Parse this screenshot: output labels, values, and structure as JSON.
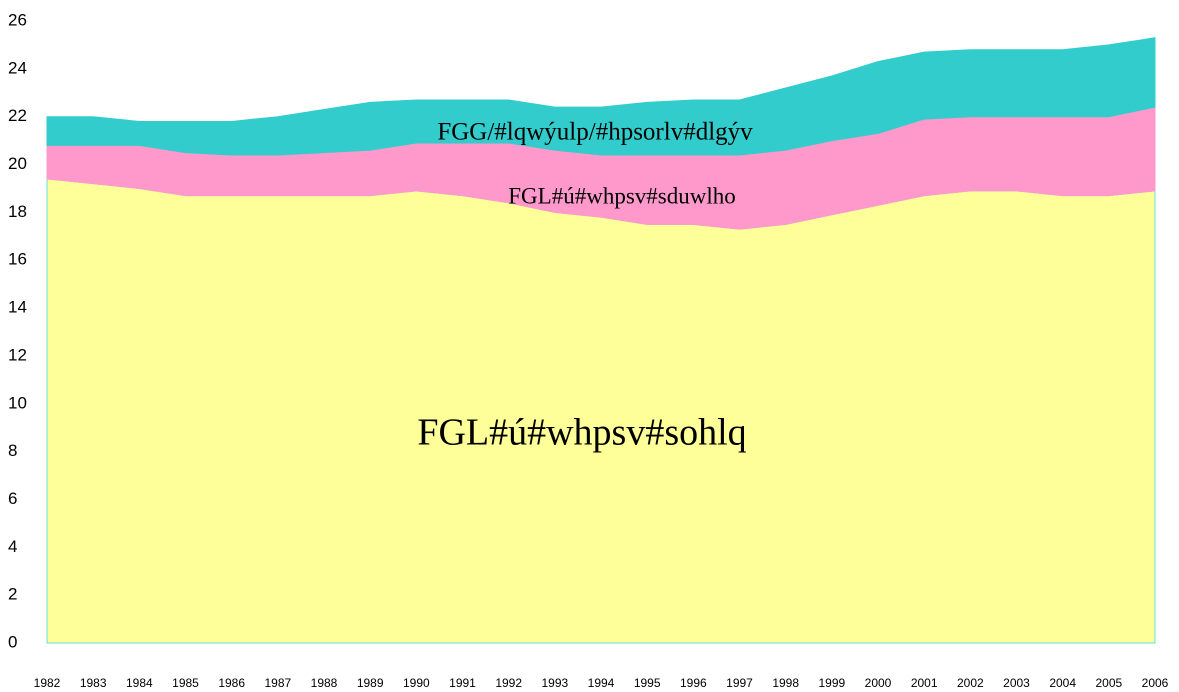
{
  "chart_data": {
    "type": "stacked_area",
    "x": [
      1982,
      1983,
      1984,
      1985,
      1986,
      1987,
      1988,
      1989,
      1990,
      1991,
      1992,
      1993,
      1994,
      1995,
      1996,
      1997,
      1998,
      1999,
      2000,
      2001,
      2002,
      2003,
      2004,
      2005,
      2006
    ],
    "xlim": [
      1982,
      2006
    ],
    "xticks": [
      1982,
      1983,
      1984,
      1985,
      1986,
      1987,
      1988,
      1989,
      1990,
      1991,
      1992,
      1993,
      1994,
      1995,
      1996,
      1997,
      1998,
      1999,
      2000,
      2001,
      2002,
      2003,
      2004,
      2005,
      2006
    ],
    "ylim": [
      0,
      26
    ],
    "yticks": [
      0,
      2,
      4,
      6,
      8,
      10,
      12,
      14,
      16,
      18,
      20,
      22,
      24,
      26
    ],
    "series": [
      {
        "name": "FGL#ú#whpsv#sohlq",
        "color": "#ffff99",
        "values": [
          19.4,
          19.2,
          19.0,
          18.7,
          18.7,
          18.7,
          18.7,
          18.7,
          18.9,
          18.7,
          18.4,
          18.0,
          17.8,
          17.5,
          17.5,
          17.3,
          17.5,
          17.9,
          18.3,
          18.7,
          18.9,
          18.9,
          18.7,
          18.7,
          18.9
        ]
      },
      {
        "name": "FGL#ú#whpsv#sduwlho",
        "color": "#ff99cc",
        "values": [
          1.4,
          1.6,
          1.8,
          1.8,
          1.7,
          1.7,
          1.8,
          1.9,
          2.0,
          2.2,
          2.5,
          2.6,
          2.6,
          2.9,
          2.9,
          3.1,
          3.1,
          3.1,
          3.0,
          3.2,
          3.1,
          3.1,
          3.3,
          3.3,
          3.5
        ]
      },
      {
        "name": "FGG/#lqwýulp/#hpsorlv#dlgýv",
        "color": "#33cccc",
        "values": [
          1.2,
          1.2,
          1.0,
          1.3,
          1.4,
          1.6,
          1.8,
          2.0,
          1.8,
          1.8,
          1.8,
          1.8,
          2.0,
          2.2,
          2.3,
          2.3,
          2.6,
          2.7,
          3.0,
          2.8,
          2.8,
          2.8,
          2.8,
          3.0,
          2.9
        ]
      }
    ]
  }
}
